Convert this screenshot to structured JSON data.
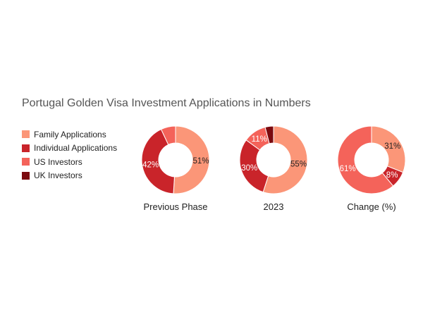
{
  "title": "Portugal Golden Visa Investment Applications in Numbers",
  "legend": [
    {
      "label": "Family Applications",
      "color": "#FB9678"
    },
    {
      "label": "Individual Applications",
      "color": "#C9242A"
    },
    {
      "label": "US Investors",
      "color": "#F4635A"
    },
    {
      "label": "UK Investors",
      "color": "#7B0A0F"
    }
  ],
  "chart_data": [
    {
      "type": "pie",
      "title": "Previous Phase",
      "slices": [
        {
          "label": "Family Applications",
          "value": 51,
          "display": "51%"
        },
        {
          "label": "Individual Applications",
          "value": 42,
          "display": "42%"
        },
        {
          "label": "US Investors",
          "value": 7,
          "display": ""
        }
      ]
    },
    {
      "type": "pie",
      "title": "2023",
      "slices": [
        {
          "label": "Family Applications",
          "value": 55,
          "display": "55%"
        },
        {
          "label": "Individual Applications",
          "value": 30,
          "display": "30%"
        },
        {
          "label": "US Investors",
          "value": 11,
          "display": "11%"
        },
        {
          "label": "UK Investors",
          "value": 4,
          "display": ""
        }
      ]
    },
    {
      "type": "pie",
      "title": "Change (%)",
      "slices": [
        {
          "label": "Family Applications",
          "value": 31,
          "display": "31%"
        },
        {
          "label": "Individual Applications",
          "value": 8,
          "display": "8%"
        },
        {
          "label": "US Investors",
          "value": 61,
          "display": "61%"
        }
      ]
    }
  ]
}
